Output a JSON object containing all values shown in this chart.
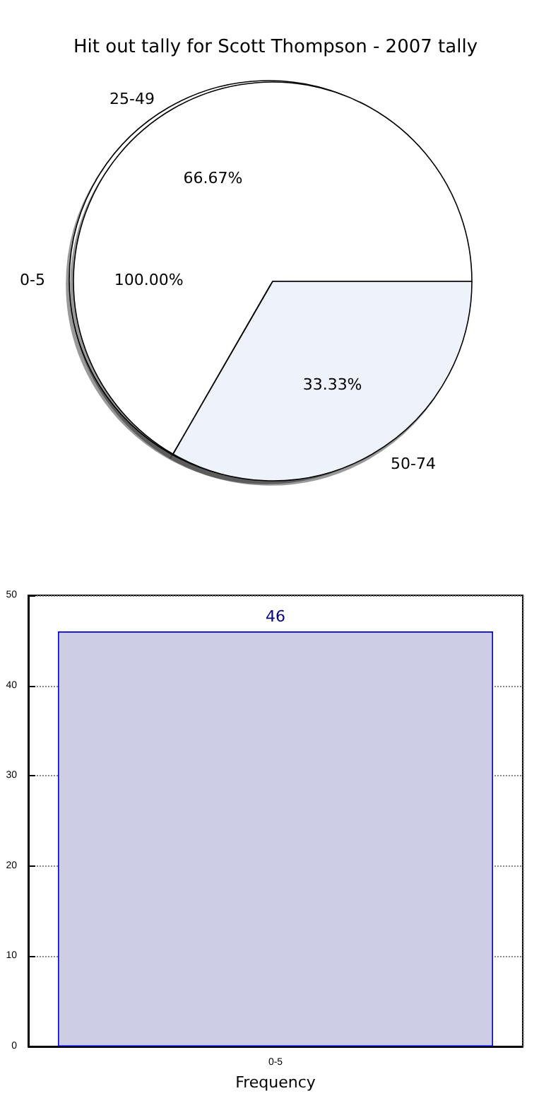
{
  "chart_data": [
    {
      "type": "pie",
      "title": "Hit out tally for Scott Thompson - 2007 tally",
      "categories": [
        "0-5"
      ],
      "values": [
        100
      ],
      "colors": [
        "#ffffff"
      ],
      "value_labels": [
        "100.00%"
      ],
      "legend": false
    },
    {
      "type": "pie",
      "categories": [
        "25-49",
        "50-74"
      ],
      "values": [
        66.67,
        33.33
      ],
      "colors": [
        "#ffffff",
        "#eef2fb"
      ],
      "value_labels": [
        "66.67%",
        "33.33%"
      ],
      "legend": false
    },
    {
      "type": "bar",
      "categories": [
        "0-5"
      ],
      "values": [
        46
      ],
      "color": "#cdcde6",
      "ylim": [
        0,
        50
      ],
      "yticks": [
        0,
        10,
        20,
        30,
        40,
        50
      ],
      "xlabel": "Frequency",
      "grid": true,
      "data_labels": true,
      "legend": false
    }
  ]
}
